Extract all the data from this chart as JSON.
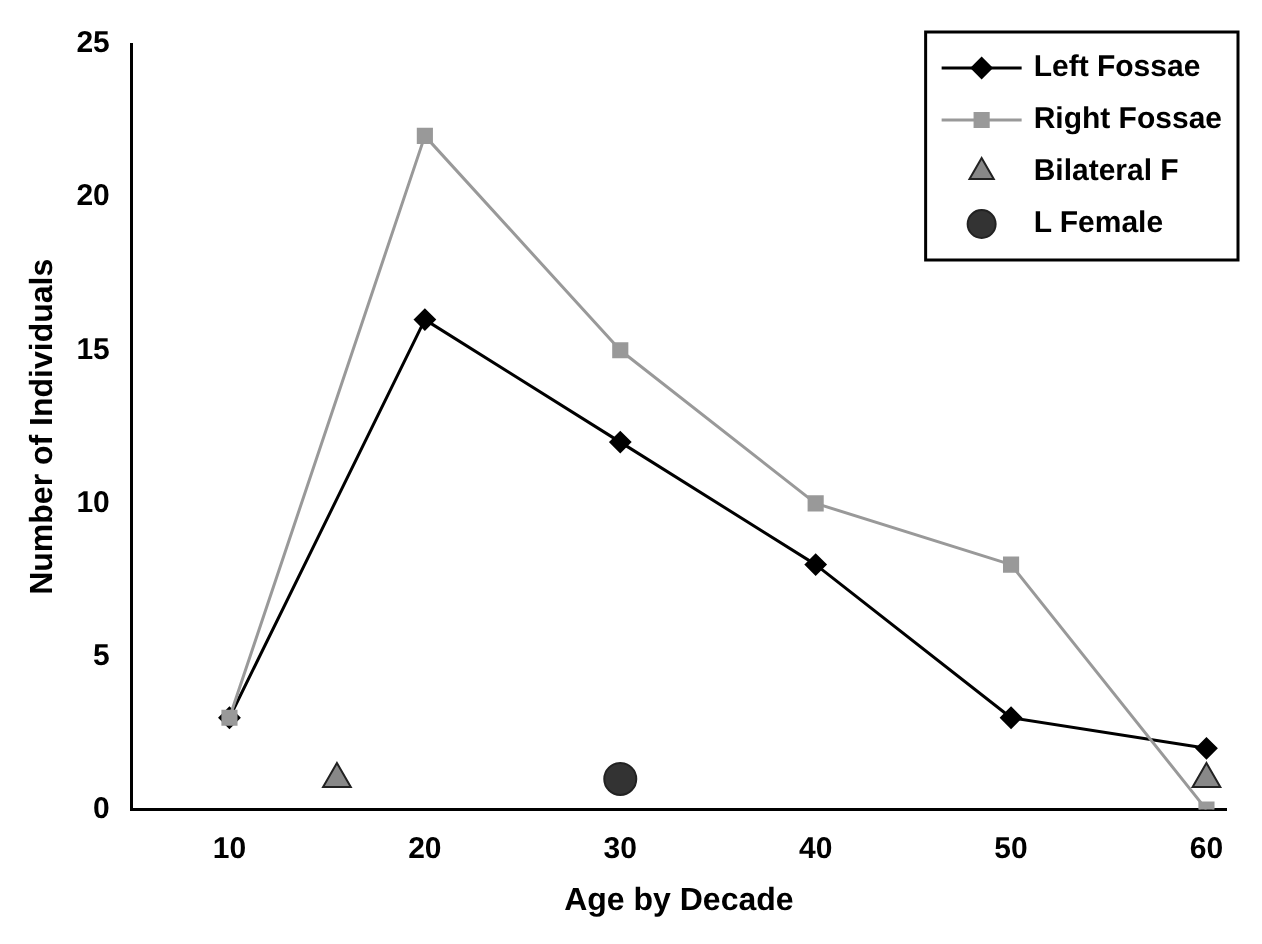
{
  "chart_data": {
    "type": "line",
    "xlabel": "Age by Decade",
    "ylabel": "Number of Individuals",
    "xlim": [
      5,
      61
    ],
    "xticks": [
      10,
      20,
      30,
      40,
      50,
      60
    ],
    "ylim": [
      0,
      25
    ],
    "yticks": [
      0,
      5,
      10,
      15,
      20,
      25
    ],
    "grid": false,
    "legend": "top right",
    "line_style": "solid",
    "series": [
      {
        "name": "Left Fossae",
        "type": "line",
        "marker": "diamond",
        "color": "#000000",
        "x": [
          10,
          20,
          30,
          40,
          50,
          60
        ],
        "values": [
          3,
          16,
          12,
          8,
          3,
          2
        ]
      },
      {
        "name": "Right Fossae",
        "type": "line",
        "marker": "square",
        "color": "#999999",
        "x": [
          10,
          20,
          30,
          40,
          50,
          60
        ],
        "values": [
          3,
          22,
          15,
          10,
          8,
          0
        ]
      },
      {
        "name": "Bilateral F",
        "type": "scatter",
        "marker": "triangle",
        "color": "#888888",
        "x": [
          15.5,
          60
        ],
        "values": [
          1,
          1
        ]
      },
      {
        "name": "L Female",
        "type": "scatter",
        "marker": "circle",
        "color": "#333333",
        "x": [
          30
        ],
        "values": [
          1
        ]
      }
    ]
  }
}
